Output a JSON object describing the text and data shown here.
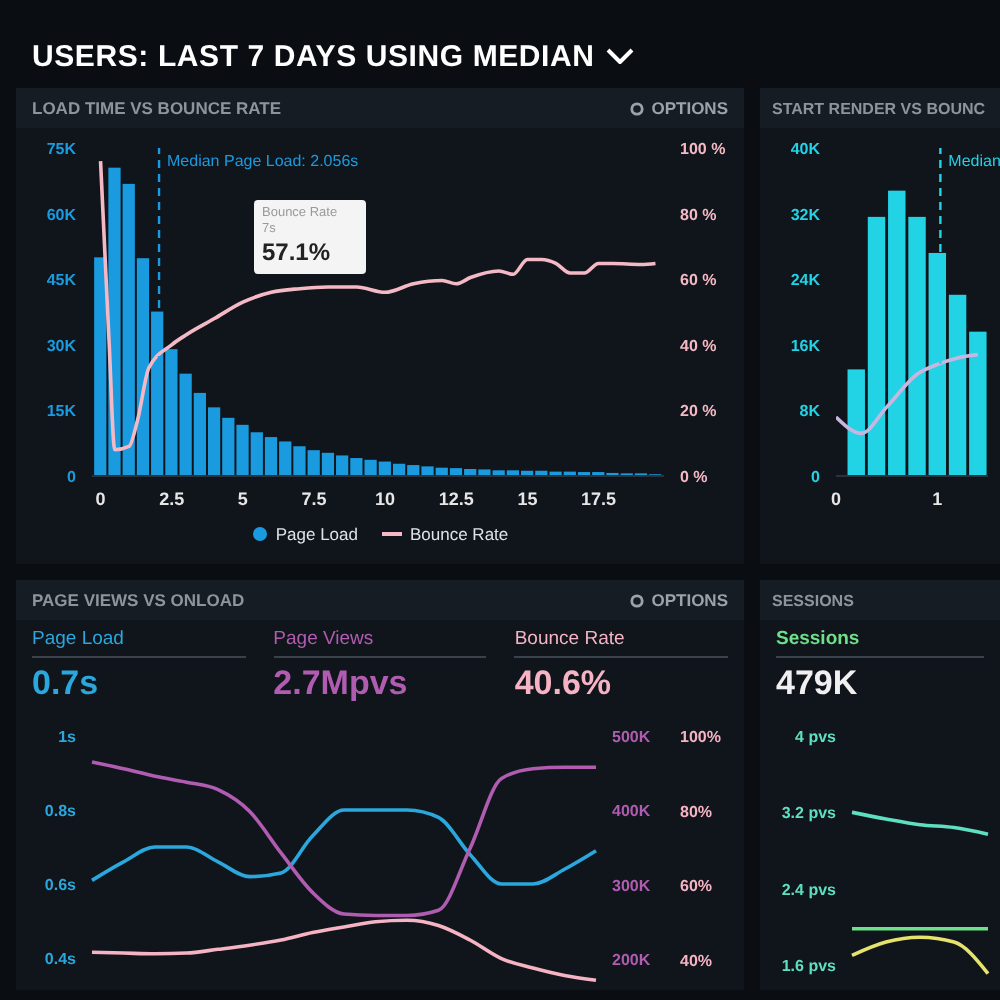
{
  "chart_data": [
    {
      "type": "bar",
      "title": "USERS: LAST 7 DAYS USING MEDIAN",
      "subtitle": "LOAD TIME VS BOUNCE RATE",
      "x": [
        0,
        0.5,
        1,
        1.5,
        2,
        2.5,
        3,
        3.5,
        4,
        4.5,
        5,
        5.5,
        6,
        6.5,
        7,
        7.5,
        8,
        8.5,
        9,
        9.5,
        10,
        10.5,
        11,
        11.5,
        12,
        12.5,
        13,
        13.5,
        14,
        14.5,
        15,
        15.5,
        16,
        16.5,
        17,
        17.5,
        18,
        18.5,
        19,
        19.5
      ],
      "series": [
        {
          "name": "Page Load",
          "color": "#1a9be0",
          "values": [
            50000,
            70500,
            66800,
            49800,
            37600,
            29000,
            23400,
            19000,
            15700,
            13300,
            11700,
            10000,
            8900,
            7900,
            6800,
            5900,
            5300,
            4700,
            4100,
            3700,
            3300,
            2800,
            2500,
            2200,
            1900,
            1800,
            1600,
            1500,
            1300,
            1300,
            1200,
            1200,
            1000,
            1000,
            900,
            900,
            700,
            600,
            600,
            400
          ]
        },
        {
          "name": "Bounce Rate",
          "type": "line",
          "axis": "y2",
          "color": "#f4b9c5",
          "x": [
            0,
            0.3,
            0.5,
            1,
            1.3,
            1.7,
            2.5,
            3,
            4,
            5,
            6,
            7,
            8,
            9,
            10,
            11,
            12,
            12.5,
            13,
            14,
            14.5,
            15,
            15.5,
            16,
            16.5,
            17,
            17.5,
            18,
            19,
            19.5
          ],
          "values": [
            96,
            41,
            8,
            9,
            17,
            33,
            40,
            43,
            48,
            53,
            56,
            57.1,
            57.6,
            57.6,
            56,
            58.6,
            59.6,
            58.6,
            60.5,
            62.5,
            61.5,
            66,
            66,
            64.8,
            61.9,
            61.9,
            64.8,
            64.8,
            64.5,
            64.8
          ]
        }
      ],
      "xlim": [
        -0.3,
        19.8
      ],
      "xticks": [
        0,
        2.5,
        5,
        7.5,
        10,
        12.5,
        15,
        17.5
      ],
      "ylim": [
        0,
        75000
      ],
      "yticks": [
        {
          "value": 0,
          "label": "0"
        },
        {
          "value": 15000,
          "label": "15K"
        },
        {
          "value": 30000,
          "label": "30K"
        },
        {
          "value": 45000,
          "label": "45K"
        },
        {
          "value": 60000,
          "label": "60K"
        },
        {
          "value": 75000,
          "label": "75K"
        }
      ],
      "y2lim": [
        0,
        100
      ],
      "y2ticks": [
        {
          "value": 0,
          "label": "0 %"
        },
        {
          "value": 20,
          "label": "20 %"
        },
        {
          "value": 40,
          "label": "40 %"
        },
        {
          "value": 60,
          "label": "60 %"
        },
        {
          "value": 80,
          "label": "80 %"
        },
        {
          "value": 100,
          "label": "100 %"
        }
      ],
      "ref_lines": [
        {
          "axis": "x",
          "value": 2.056,
          "label": "Median Page Load: 2.056s",
          "color": "#1a9be0",
          "line_style": "dashed"
        }
      ],
      "annotations": [
        "OPTIONS",
        "Bounce Rate\n7s\n57.1%"
      ],
      "legend": "bottom",
      "grid": false
    },
    {
      "type": "bar",
      "title": "START RENDER VS BOUNC",
      "x": [
        0.2,
        0.4,
        0.6,
        0.8,
        1,
        1.2,
        1.4
      ],
      "series": [
        {
          "color": "#22d3e6",
          "values": [
            13000,
            31600,
            34800,
            31600,
            27200,
            22100,
            17600
          ]
        },
        {
          "type": "line",
          "axis": "y2",
          "color": "#c9b6e0",
          "x": [
            0,
            0.25,
            0.5,
            0.8,
            1,
            1.2,
            1.4
          ],
          "values": [
            18,
            13,
            21,
            31,
            34,
            36,
            37
          ]
        }
      ],
      "xlim": [
        0,
        1.5
      ],
      "xticks": [
        0,
        1
      ],
      "ylim": [
        0,
        40000
      ],
      "yticks": [
        {
          "value": 0,
          "label": "0"
        },
        {
          "value": 8000,
          "label": "8K"
        },
        {
          "value": 16000,
          "label": "16K"
        },
        {
          "value": 24000,
          "label": "24K"
        },
        {
          "value": 32000,
          "label": "32K"
        },
        {
          "value": 40000,
          "label": "40K"
        }
      ],
      "y2lim": [
        0,
        100
      ],
      "ref_lines": [
        {
          "axis": "x",
          "value": 1.03,
          "label": "Median",
          "color": "#22d3e6",
          "line_style": "dashed"
        }
      ],
      "grid": false
    },
    {
      "type": "line",
      "title": "PAGE VIEWS VS ONLOAD",
      "categories": [
        null,
        null,
        null,
        null,
        null,
        null,
        null,
        null,
        null,
        null,
        null,
        null,
        null,
        null,
        null,
        null,
        null
      ],
      "series": [
        {
          "name": "Page Load",
          "color": "#2aa7dc",
          "values": [
            0.61,
            0.66,
            0.7,
            0.7,
            0.66,
            0.62,
            0.63,
            0.73,
            0.8,
            0.8,
            0.8,
            0.78,
            0.68,
            0.6,
            0.6,
            0.64,
            0.69
          ]
        },
        {
          "name": "Page Views",
          "axis": "y2",
          "color": "#b05cb0",
          "values": [
            465000,
            456000,
            446000,
            438000,
            428000,
            399000,
            343000,
            290000,
            261000,
            259000,
            259000,
            266000,
            349000,
            443000,
            456000,
            458000,
            458000
          ]
        },
        {
          "name": "Bounce Rate",
          "axis": "y3",
          "color": "#f5b3c3",
          "values": [
            42,
            41.8,
            41.6,
            41.8,
            42.8,
            43.9,
            45.3,
            47.3,
            48.8,
            50.2,
            50.6,
            49.2,
            45.3,
            40.3,
            37.8,
            35.8,
            34.5
          ]
        }
      ],
      "ylim": [
        0.33,
        1
      ],
      "yticks": [
        {
          "value": 0.4,
          "label": "0.4s"
        },
        {
          "value": 0.6,
          "label": "0.6s"
        },
        {
          "value": 0.8,
          "label": "0.8s"
        },
        {
          "value": 1,
          "label": "1s"
        }
      ],
      "y2lim": [
        167000,
        500000
      ],
      "y2ticks": [
        {
          "value": 200000,
          "label": "200K"
        },
        {
          "value": 300000,
          "label": "300K"
        },
        {
          "value": 400000,
          "label": "400K"
        },
        {
          "value": 500000,
          "label": "500K"
        }
      ],
      "y3lim": [
        33.5,
        100
      ],
      "y3ticks": [
        {
          "value": 40,
          "label": "40%"
        },
        {
          "value": 60,
          "label": "60%"
        },
        {
          "value": 80,
          "label": "80%"
        },
        {
          "value": 100,
          "label": "100%"
        }
      ],
      "annotations": [
        "OPTIONS",
        "0.7s",
        "2.7Mpvs",
        "40.6%"
      ],
      "legend": "top",
      "grid": false
    },
    {
      "type": "line",
      "title": "SESSIONS",
      "categories": [
        null,
        null,
        null,
        null,
        null
      ],
      "series": [
        {
          "color": "#5ee0c0",
          "values": [
            3.2,
            3.13,
            3.07,
            3.04,
            2.97
          ]
        },
        {
          "color": "#6fe08a",
          "values": [
            1.98,
            1.98,
            1.98,
            1.98,
            1.98
          ]
        },
        {
          "color": "#e5e36b",
          "values": [
            1.7,
            1.84,
            1.89,
            1.84,
            1.51
          ]
        }
      ],
      "ylim": [
        1.4,
        4
      ],
      "yticks": [
        {
          "value": 1.6,
          "label": "1.6 pvs"
        },
        {
          "value": 2.4,
          "label": "2.4 pvs"
        },
        {
          "value": 3.2,
          "label": "3.2 pvs"
        },
        {
          "value": 4,
          "label": "4 pvs"
        }
      ],
      "annotations": [
        "Sessions",
        "479K"
      ],
      "grid": false
    }
  ]
}
